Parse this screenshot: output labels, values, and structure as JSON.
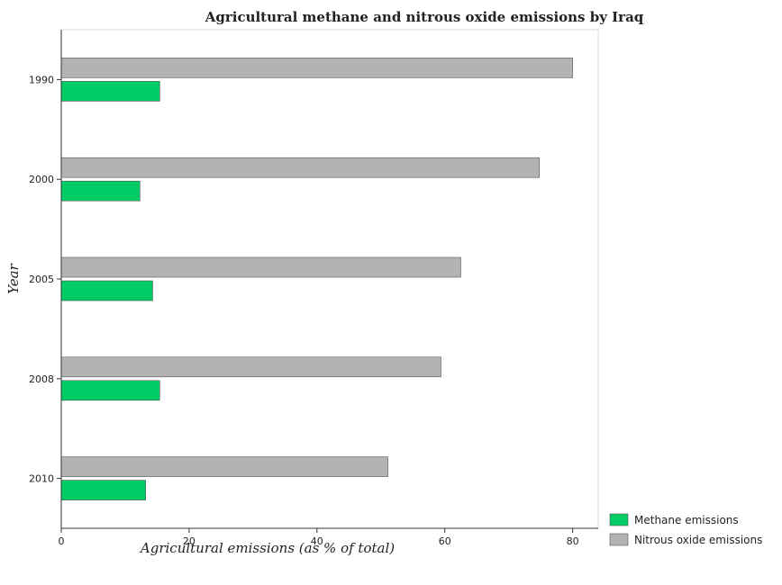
{
  "chart_data": {
    "type": "bar",
    "orientation": "horizontal",
    "title": "Agricultural methane and nitrous oxide emissions by Iraq",
    "xlabel": "Agricultural emissions (as % of total)",
    "ylabel": "Year",
    "categories": [
      "1990",
      "2000",
      "2005",
      "2008",
      "2010"
    ],
    "series": [
      {
        "name": "Methane emissions",
        "color": "#00cc66",
        "values": [
          15.4,
          12.3,
          14.3,
          15.4,
          13.2
        ]
      },
      {
        "name": "Nitrous oxide emissions",
        "color": "#b3b3b3",
        "values": [
          80.0,
          74.8,
          62.5,
          59.4,
          51.1
        ]
      }
    ],
    "xlim": [
      0,
      84
    ],
    "xticks": [
      0,
      20,
      40,
      60,
      80
    ],
    "grid": false,
    "legend_position": "bottom-right"
  }
}
